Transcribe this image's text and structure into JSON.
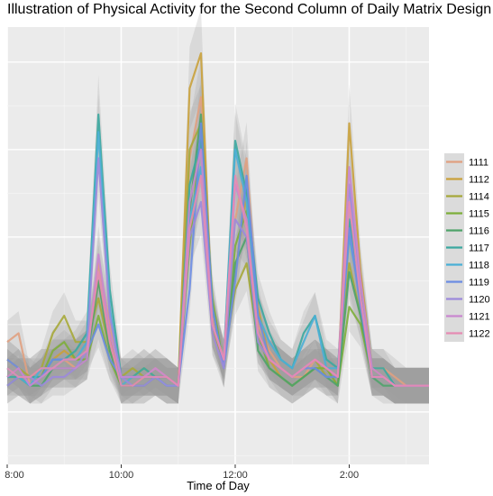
{
  "chart_data": {
    "type": "line",
    "title": "Illustration of Physical Activity for the Second Column of Daily Matrix Design",
    "xlabel": "Time of Day",
    "ylabel": "",
    "x_ticks": [
      "8:00",
      "10:00",
      "12:00",
      "2:00"
    ],
    "x_tick_hours": [
      8,
      10,
      12,
      14
    ],
    "xlim": [
      8,
      15.4
    ],
    "ylim": [
      -0.6,
      4.4
    ],
    "grid": true,
    "legend_position": "right",
    "ribbon_color": "#999999",
    "x": [
      8.0,
      8.2,
      8.4,
      8.6,
      8.8,
      9.0,
      9.2,
      9.4,
      9.6,
      9.8,
      10.0,
      10.2,
      10.4,
      10.6,
      10.8,
      11.0,
      11.2,
      11.4,
      11.6,
      11.8,
      12.0,
      12.2,
      12.4,
      12.6,
      12.8,
      13.0,
      13.2,
      13.4,
      13.6,
      13.8,
      14.0,
      14.2,
      14.4,
      14.6,
      14.8,
      15.0,
      15.2,
      15.4
    ],
    "series": [
      {
        "name": "1111",
        "color": "#E0A080",
        "values": [
          0.8,
          0.9,
          0.3,
          0.4,
          0.5,
          0.6,
          0.5,
          0.6,
          1.7,
          1.0,
          0.3,
          0.4,
          0.4,
          0.5,
          0.4,
          0.3,
          2.9,
          3.6,
          1.1,
          0.6,
          2.2,
          2.9,
          1.0,
          0.7,
          0.5,
          0.4,
          0.4,
          0.6,
          0.5,
          0.4,
          2.0,
          1.4,
          0.5,
          0.5,
          0.4,
          0.3,
          0.3,
          0.3
        ]
      },
      {
        "name": "1112",
        "color": "#C9A13B",
        "values": [
          0.6,
          0.5,
          0.3,
          0.4,
          0.6,
          0.7,
          0.6,
          0.7,
          1.5,
          0.9,
          0.3,
          0.4,
          0.5,
          0.4,
          0.4,
          0.3,
          3.7,
          4.1,
          1.0,
          0.5,
          1.6,
          2.5,
          1.2,
          0.6,
          0.4,
          0.3,
          0.4,
          0.5,
          0.5,
          0.3,
          3.3,
          1.6,
          0.5,
          0.4,
          0.3,
          0.3,
          0.3,
          0.3
        ]
      },
      {
        "name": "1114",
        "color": "#A6A83A",
        "values": [
          0.4,
          0.5,
          0.4,
          0.5,
          0.9,
          1.1,
          0.8,
          0.8,
          1.3,
          0.7,
          0.4,
          0.5,
          0.4,
          0.4,
          0.4,
          0.3,
          3.0,
          3.3,
          0.9,
          0.6,
          1.4,
          1.7,
          0.8,
          0.6,
          0.5,
          0.4,
          0.5,
          0.6,
          0.4,
          0.4,
          1.7,
          1.1,
          0.4,
          0.4,
          0.3,
          0.3,
          0.3,
          0.3
        ]
      },
      {
        "name": "1115",
        "color": "#7DAE3A",
        "values": [
          0.5,
          0.4,
          0.3,
          0.4,
          0.7,
          0.8,
          0.6,
          0.6,
          1.1,
          0.6,
          0.3,
          0.3,
          0.4,
          0.4,
          0.3,
          0.3,
          1.9,
          3.2,
          1.3,
          0.5,
          1.9,
          2.3,
          0.9,
          0.5,
          0.4,
          0.3,
          0.4,
          0.5,
          0.5,
          0.3,
          1.2,
          1.0,
          0.4,
          0.4,
          0.3,
          0.3,
          0.3,
          0.3
        ]
      },
      {
        "name": "1116",
        "color": "#4FA36A",
        "values": [
          0.3,
          0.4,
          0.3,
          0.3,
          0.5,
          0.5,
          0.5,
          0.6,
          1.5,
          0.7,
          0.3,
          0.3,
          0.3,
          0.4,
          0.3,
          0.3,
          2.3,
          3.4,
          1.2,
          0.5,
          1.7,
          2.0,
          0.7,
          0.5,
          0.4,
          0.3,
          0.4,
          0.5,
          0.4,
          0.3,
          1.6,
          1.1,
          0.4,
          0.3,
          0.3,
          0.3,
          0.3,
          0.3
        ]
      },
      {
        "name": "1117",
        "color": "#3BA8A0",
        "values": [
          0.4,
          0.4,
          0.4,
          0.4,
          0.6,
          0.6,
          0.7,
          0.9,
          3.4,
          1.4,
          0.4,
          0.4,
          0.5,
          0.4,
          0.4,
          0.3,
          2.6,
          3.1,
          1.0,
          0.6,
          3.1,
          2.5,
          1.3,
          0.9,
          0.6,
          0.5,
          0.9,
          1.1,
          0.6,
          0.5,
          2.2,
          1.4,
          0.5,
          0.5,
          0.3,
          0.3,
          0.3,
          0.3
        ]
      },
      {
        "name": "1118",
        "color": "#4AAFD6",
        "values": [
          0.5,
          0.4,
          0.3,
          0.5,
          0.5,
          0.6,
          0.6,
          0.8,
          3.2,
          1.2,
          0.3,
          0.4,
          0.4,
          0.4,
          0.3,
          0.3,
          2.2,
          2.8,
          1.0,
          0.6,
          3.0,
          2.4,
          1.1,
          0.8,
          0.6,
          0.5,
          0.8,
          1.1,
          0.5,
          0.5,
          2.0,
          1.3,
          0.4,
          0.4,
          0.3,
          0.3,
          0.3,
          0.3
        ]
      },
      {
        "name": "1119",
        "color": "#6B8CE3",
        "values": [
          0.6,
          0.5,
          0.3,
          0.4,
          0.6,
          0.6,
          0.6,
          0.7,
          1.0,
          0.6,
          0.4,
          0.4,
          0.4,
          0.4,
          0.4,
          0.3,
          1.4,
          3.3,
          1.2,
          0.5,
          1.5,
          2.7,
          1.1,
          0.6,
          0.5,
          0.4,
          0.5,
          0.5,
          0.4,
          0.4,
          2.1,
          1.2,
          0.4,
          0.4,
          0.3,
          0.3,
          0.3,
          0.3
        ]
      },
      {
        "name": "1120",
        "color": "#9C8ADB",
        "values": [
          0.3,
          0.4,
          0.4,
          0.3,
          0.4,
          0.4,
          0.5,
          0.7,
          2.9,
          1.1,
          0.4,
          0.3,
          0.3,
          0.4,
          0.3,
          0.3,
          2.0,
          2.4,
          0.9,
          0.5,
          2.2,
          2.0,
          0.8,
          0.6,
          0.5,
          0.4,
          0.5,
          0.6,
          0.5,
          0.4,
          2.6,
          1.3,
          0.4,
          0.4,
          0.3,
          0.3,
          0.3,
          0.3
        ]
      },
      {
        "name": "1121",
        "color": "#C987D0",
        "values": [
          0.4,
          0.5,
          0.3,
          0.4,
          0.5,
          0.5,
          0.5,
          0.6,
          1.8,
          0.9,
          0.4,
          0.4,
          0.4,
          0.5,
          0.4,
          0.3,
          2.4,
          3.0,
          1.0,
          0.6,
          2.6,
          2.2,
          0.9,
          0.6,
          0.5,
          0.4,
          0.5,
          0.6,
          0.5,
          0.4,
          2.8,
          1.5,
          0.5,
          0.4,
          0.3,
          0.3,
          0.3,
          0.3
        ]
      },
      {
        "name": "1122",
        "color": "#E68BB3",
        "values": [
          0.5,
          0.4,
          0.4,
          0.5,
          0.5,
          0.6,
          0.6,
          0.7,
          1.6,
          0.8,
          0.3,
          0.3,
          0.4,
          0.4,
          0.4,
          0.3,
          2.1,
          2.7,
          1.0,
          0.6,
          2.7,
          2.1,
          0.9,
          0.6,
          0.5,
          0.4,
          0.5,
          0.6,
          0.5,
          0.4,
          2.4,
          1.3,
          0.4,
          0.4,
          0.3,
          0.3,
          0.3,
          0.3
        ]
      }
    ]
  }
}
